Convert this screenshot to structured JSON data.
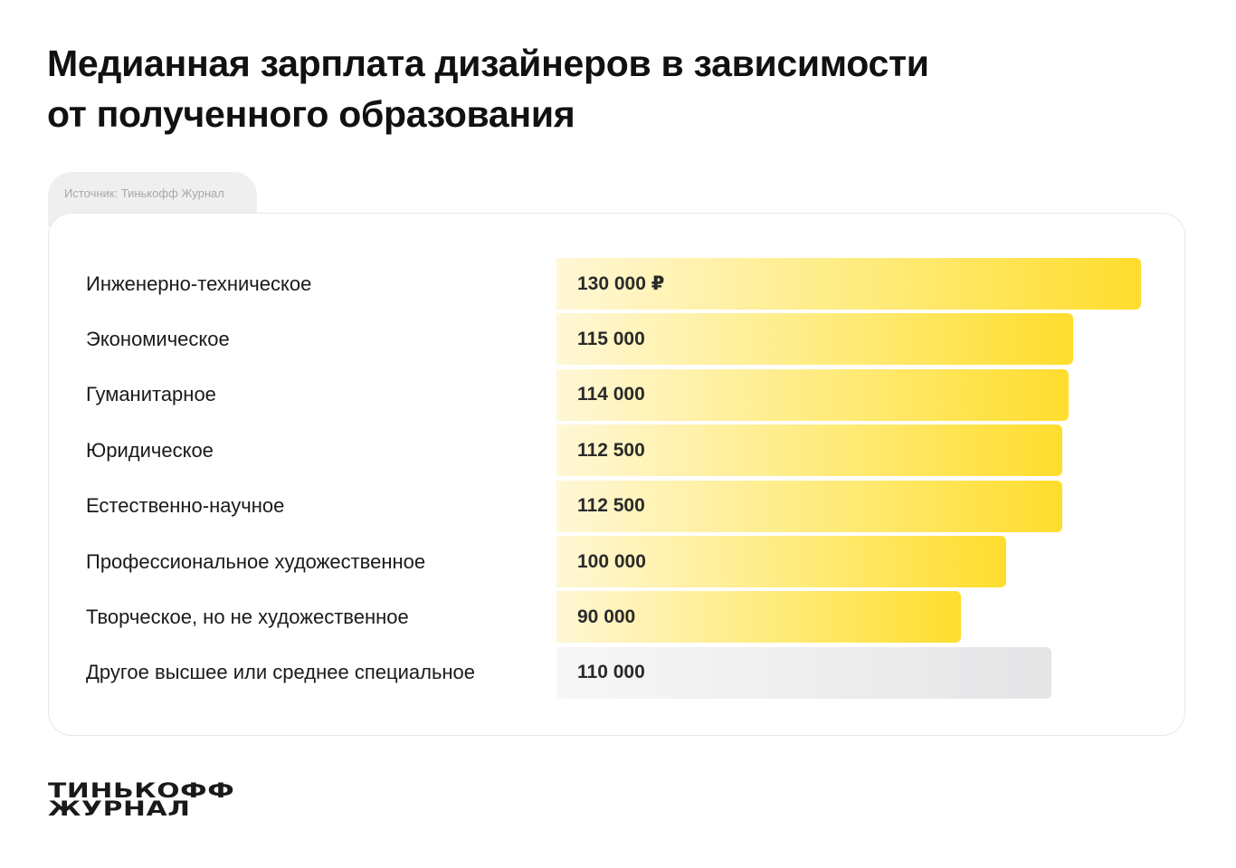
{
  "title": {
    "line1": "Медианная зарплата дизайнеров в зависимости",
    "line2": "от полученного образования"
  },
  "source": "Источник: Тинькофф Журнал",
  "logo": {
    "line1": "ТИНЬКОФФ",
    "line2": "ЖУРНАЛ"
  },
  "colors": {
    "bar_highlight": "#ffdd2d",
    "bar_neutral": "#e5e5e7"
  },
  "chart_data": {
    "type": "bar",
    "orientation": "horizontal",
    "unit": "₽",
    "categories": [
      "Инженерно-техническое",
      "Экономическое",
      "Гуманитарное",
      "Юридическое",
      "Естественно-научное",
      "Профессиональное художественное",
      "Творческое, но не художественное",
      "Другое высшее или среднее специальное"
    ],
    "values": [
      130000,
      115000,
      114000,
      112500,
      112500,
      100000,
      90000,
      110000
    ],
    "value_labels": [
      "130 000 ₽",
      "115 000",
      "114 000",
      "112 500",
      "112 500",
      "100 000",
      "90 000",
      "110 000"
    ],
    "highlight": [
      true,
      true,
      true,
      true,
      true,
      true,
      true,
      false
    ],
    "xlim": [
      0,
      130000
    ],
    "grid": false
  }
}
